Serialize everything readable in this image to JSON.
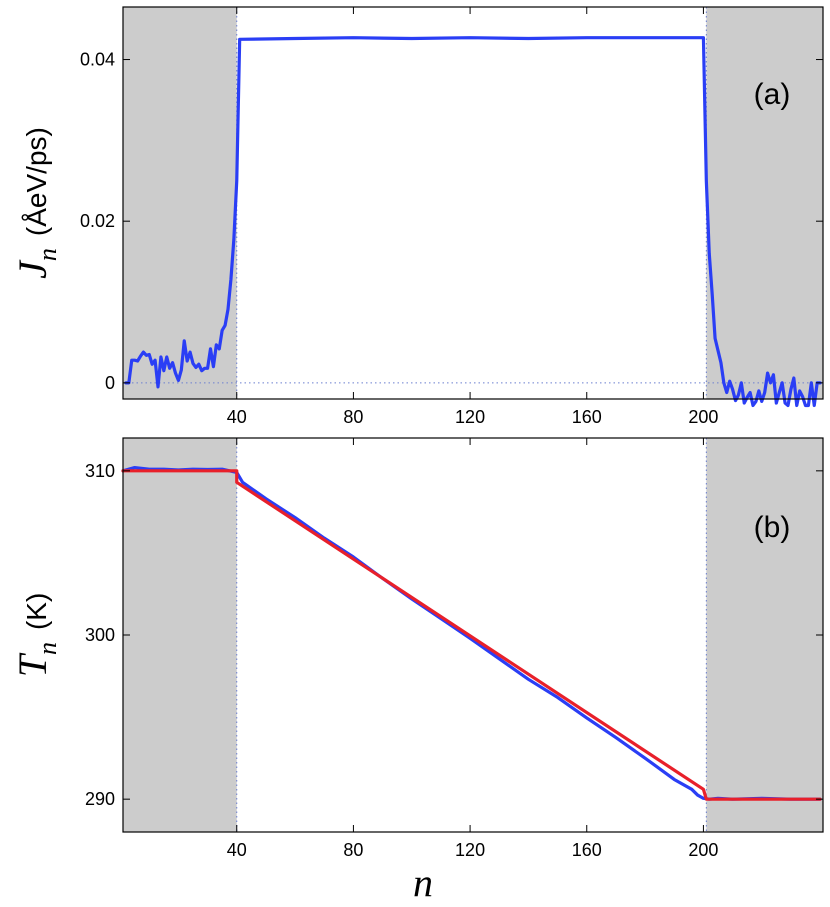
{
  "chart_data": [
    {
      "type": "line",
      "panel_label": "(a)",
      "ylabel_symbol": "J",
      "ylabel_subscript": "n",
      "ylabel_unit": "(ÅeV/ps)",
      "xlabel": "",
      "xlim": [
        1,
        241
      ],
      "ylim": [
        -0.002,
        0.0465
      ],
      "xticks": [
        40,
        80,
        120,
        160,
        200
      ],
      "yticks": [
        0,
        0.02,
        0.04
      ],
      "ytick_labels": [
        "0",
        "0.02",
        "0.04"
      ],
      "shaded_regions": [
        [
          1,
          40
        ],
        [
          201,
          241
        ]
      ],
      "reference_lines": {
        "horizontal": [
          0
        ],
        "vertical": [
          40,
          201
        ]
      },
      "series": [
        {
          "color": "#2a3ef5",
          "x": [
            2,
            3,
            4,
            5,
            6,
            7,
            8,
            9,
            10,
            11,
            12,
            13,
            14,
            15,
            16,
            17,
            18,
            19,
            20,
            21,
            22,
            23,
            24,
            25,
            26,
            27,
            28,
            29,
            30,
            31,
            32,
            33,
            34,
            35,
            36,
            37,
            38,
            39,
            40,
            41,
            60,
            80,
            100,
            120,
            140,
            160,
            180,
            200,
            201,
            202,
            203,
            204,
            205,
            206,
            207,
            208,
            209,
            210,
            211,
            212,
            213,
            214,
            215,
            216,
            217,
            218,
            219,
            220,
            221,
            222,
            223,
            224,
            225,
            226,
            227,
            228,
            229,
            230,
            231,
            232,
            233,
            234,
            235,
            236,
            237,
            238,
            239,
            240
          ],
          "y": [
            0.0,
            0.0,
            0.0028,
            0.0028,
            0.0027,
            0.0033,
            0.0038,
            0.0034,
            0.0035,
            0.0023,
            0.0028,
            -0.0005,
            0.0032,
            0.0015,
            0.0032,
            0.0018,
            0.0025,
            0.0012,
            0.0003,
            0.0016,
            0.0052,
            0.0027,
            0.0038,
            0.0024,
            0.0019,
            0.0023,
            0.0015,
            0.0018,
            0.0018,
            0.0042,
            0.002,
            0.0047,
            0.0042,
            0.0065,
            0.0071,
            0.0091,
            0.0128,
            0.0177,
            0.025,
            0.0425,
            0.0426,
            0.0427,
            0.0426,
            0.0427,
            0.0426,
            0.0427,
            0.0427,
            0.0427,
            0.025,
            0.016,
            0.011,
            0.0055,
            0.004,
            0.0025,
            0.0,
            -0.0012,
            0.0002,
            -0.0008,
            -0.0022,
            -0.0015,
            0.0,
            -0.0025,
            -0.0018,
            -0.0012,
            -0.0028,
            -0.0023,
            -0.001,
            -0.0023,
            -0.0012,
            0.0012,
            0.0,
            0.001,
            -0.0025,
            -0.0012,
            0.0,
            -0.0025,
            -0.0028,
            -0.0008,
            0.0006,
            -0.0028,
            -0.001,
            -0.0017,
            -0.0028,
            -0.0028,
            0.0,
            -0.0028,
            0.0,
            0.0
          ]
        }
      ]
    },
    {
      "type": "line",
      "panel_label": "(b)",
      "ylabel_symbol": "T",
      "ylabel_subscript": "n",
      "ylabel_unit": "(K)",
      "xlabel": "n",
      "xlim": [
        1,
        241
      ],
      "ylim": [
        288,
        312
      ],
      "xticks": [
        40,
        80,
        120,
        160,
        200
      ],
      "yticks": [
        290,
        300,
        310
      ],
      "ytick_labels": [
        "290",
        "300",
        "310"
      ],
      "shaded_regions": [
        [
          1,
          40
        ],
        [
          201,
          241
        ]
      ],
      "reference_lines": {
        "vertical": [
          40,
          201
        ]
      },
      "series": [
        {
          "color": "#2a3ef5",
          "x": [
            1,
            5,
            10,
            15,
            20,
            25,
            30,
            35,
            40,
            42,
            50,
            60,
            70,
            80,
            90,
            100,
            110,
            120,
            130,
            140,
            150,
            160,
            170,
            180,
            190,
            196,
            198,
            200,
            202,
            205,
            210,
            220,
            230,
            240
          ],
          "y": [
            310.0,
            310.2,
            310.1,
            310.1,
            310.05,
            310.1,
            310.08,
            310.1,
            309.9,
            309.3,
            308.3,
            307.15,
            305.9,
            304.75,
            303.45,
            302.2,
            301.0,
            299.8,
            298.55,
            297.3,
            296.2,
            294.95,
            293.75,
            292.5,
            291.2,
            290.6,
            290.25,
            290.05,
            290.0,
            290.05,
            290.0,
            290.05,
            290.0,
            290.0
          ]
        },
        {
          "color": "#e8202a",
          "x": [
            1,
            40,
            40,
            200,
            201,
            240
          ],
          "y": [
            310.0,
            310.0,
            309.3,
            290.6,
            290.0,
            290.0
          ]
        }
      ]
    }
  ]
}
